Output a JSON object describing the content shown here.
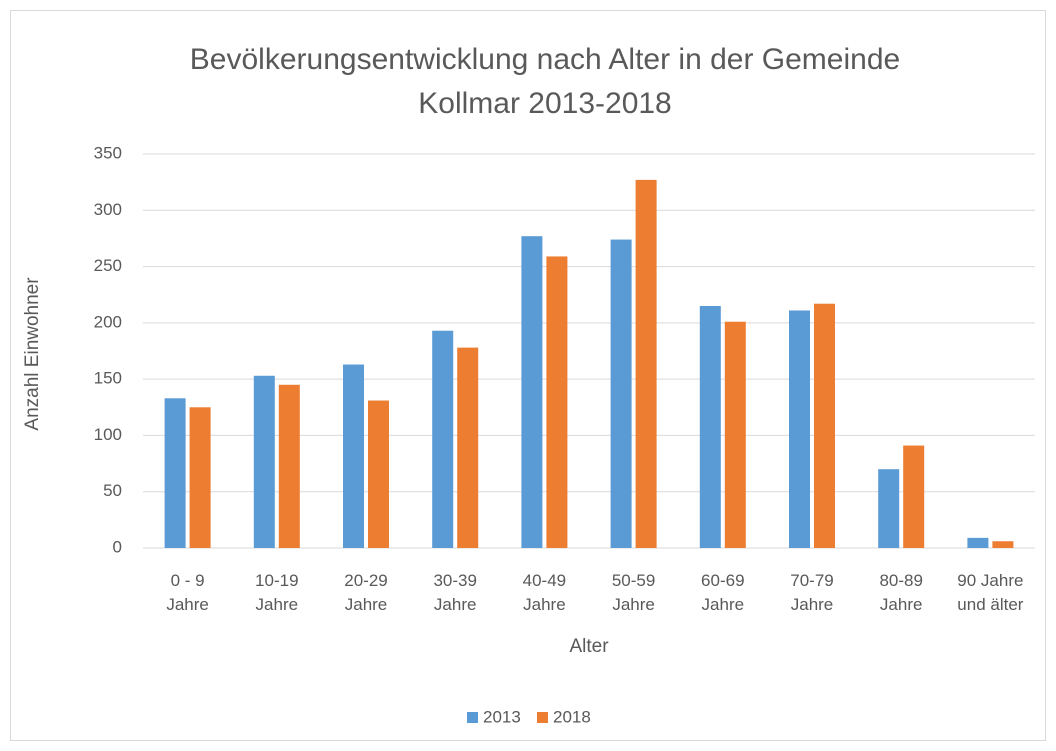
{
  "chart_data": {
    "type": "bar",
    "title": "Bevölkerungsentwicklung nach Alter in der Gemeinde\nKollmar 2013-2018",
    "x_label": "Alter",
    "y_label": "Anzahl Einwohner",
    "categories": [
      "0 - 9\nJahre",
      "10-19\nJahre",
      "20-29\nJahre",
      "30-39\nJahre",
      "40-49\nJahre",
      "50-59\nJahre",
      "60-69\nJahre",
      "70-79\nJahre",
      "80-89\nJahre",
      "90 Jahre\nund älter"
    ],
    "series": [
      {
        "name": "2013",
        "color": "#5b9bd5",
        "values": [
          133,
          153,
          163,
          193,
          277,
          274,
          215,
          211,
          70,
          9
        ]
      },
      {
        "name": "2018",
        "color": "#ed7d31",
        "values": [
          125,
          145,
          131,
          178,
          259,
          327,
          201,
          217,
          91,
          6
        ]
      }
    ],
    "ylim": [
      0,
      350
    ],
    "yticks": [
      0,
      50,
      100,
      150,
      200,
      250,
      300,
      350
    ],
    "grid": true,
    "legend": "bottom"
  }
}
